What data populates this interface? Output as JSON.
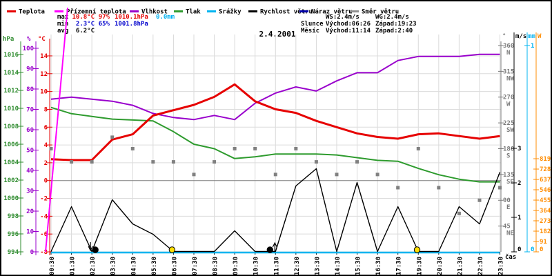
{
  "title": "2.4.2001",
  "legend": {
    "items": [
      {
        "label": "Teplota",
        "color": "#e60000"
      },
      {
        "label": "Přízemní teplota",
        "color": "#ff00ff"
      },
      {
        "label": "Vlhkost",
        "color": "#9900cc"
      },
      {
        "label": "Tlak",
        "color": "#2e9b2e"
      },
      {
        "label": "Srážky",
        "color": "#00b4f0"
      },
      {
        "label": "Rychlost větru",
        "color": "#000000"
      },
      {
        "label": "Náraz větru",
        "color": "#0000aa"
      },
      {
        "label": "Směr větru",
        "color": "#909090"
      }
    ]
  },
  "stats": {
    "max": {
      "label": "max",
      "temp": "10.8°C",
      "hum": "97%",
      "pres": "1010.1hPa",
      "precip": "0.0mm"
    },
    "min": {
      "label": "min",
      "temp": "2.3°C",
      "hum": "65%",
      "pres": "1001.8hPa"
    },
    "avg": {
      "label": "avg",
      "temp": "6.2°C"
    }
  },
  "wind_stats": {
    "ws": "WS:2.4m/s",
    "wg": "WG:2.4m/s",
    "sun_label": "Slunce",
    "sun_rise": "Východ:06:26",
    "sun_set": "Západ:19:23",
    "moon_label": "Měsíc",
    "moon_rise": "Východ:11:14",
    "moon_set": "Západ:2:40"
  },
  "axis_titles": {
    "pressure": "hPa",
    "humidity": "%",
    "temperature": "°C",
    "direction": "°",
    "wind": "m/s",
    "precip": "mm",
    "radiation": "W",
    "time": "čas"
  },
  "chart_data": {
    "type": "line",
    "title": "2.4.2001",
    "xlabel": "čas",
    "x_labels": [
      "00:30",
      "01:30",
      "02:30",
      "03:30",
      "04:30",
      "05:30",
      "06:30",
      "07:30",
      "08:30",
      "09:30",
      "10:30",
      "11:30",
      "12:30",
      "13:30",
      "14:30",
      "15:30",
      "16:30",
      "17:30",
      "19:30",
      "20:30",
      "21:30",
      "22:30",
      "23:30"
    ],
    "axes": {
      "pressure_hpa_ticks": [
        1016,
        1014,
        1012,
        1010,
        1008,
        1006,
        1004,
        1002,
        1000,
        998,
        996,
        994
      ],
      "humidity_pct_ticks": [
        100,
        90,
        80,
        70,
        60,
        50,
        40,
        30,
        20,
        10,
        0
      ],
      "temperature_c_ticks": [
        14,
        12,
        10,
        8,
        6,
        4,
        2,
        0,
        -2,
        -4,
        -6,
        -8
      ],
      "direction_deg_ticks": [
        {
          "v": 360,
          "d": "N"
        },
        {
          "v": 315,
          "d": "NW"
        },
        {
          "v": 270,
          "d": "W"
        },
        {
          "v": 225,
          "d": "SW"
        },
        {
          "v": 180,
          "d": "S"
        },
        {
          "v": 135,
          "d": "SE"
        },
        {
          "v": 90,
          "d": "E"
        },
        {
          "v": 45,
          "d": "NE"
        }
      ],
      "wind_ms_ticks": [
        3,
        2,
        1,
        0
      ],
      "precip_mm_ticks": [
        1,
        0
      ],
      "radiation_w_ticks": [
        819,
        728,
        637,
        546,
        455,
        364,
        273,
        182,
        91,
        0
      ]
    },
    "series": [
      {
        "name": "Teplota",
        "unit": "°C",
        "color": "#e60000",
        "values": [
          2.4,
          2.3,
          2.3,
          4.6,
          5.2,
          7.3,
          7.9,
          8.5,
          9.4,
          10.8,
          8.9,
          8.0,
          7.6,
          6.7,
          6.0,
          5.3,
          4.9,
          4.7,
          5.2,
          5.3,
          5.0,
          4.7,
          5.0
        ]
      },
      {
        "name": "Přízemní teplota",
        "unit": "°C",
        "color": "#ff00ff",
        "segment": {
          "i": [
            -0.27,
            0.81
          ],
          "v": [
            -8,
            19.4
          ]
        }
      },
      {
        "name": "Vlhkost",
        "unit": "%",
        "color": "#9900cc",
        "values": [
          75,
          76,
          75,
          74,
          72,
          68,
          66,
          65,
          67,
          65,
          73,
          78,
          81,
          79,
          84,
          88,
          88,
          94,
          96,
          96,
          96,
          97,
          97
        ]
      },
      {
        "name": "Tlak",
        "unit": "hPa",
        "color": "#2e9b2e",
        "values": [
          1010.1,
          1009.4,
          1009.1,
          1008.8,
          1008.7,
          1008.6,
          1007.4,
          1006.0,
          1005.5,
          1004.4,
          1004.6,
          1004.9,
          1004.9,
          1004.9,
          1004.8,
          1004.5,
          1004.2,
          1004.1,
          1003.3,
          1002.6,
          1002.1,
          1001.8,
          1001.8
        ]
      },
      {
        "name": "Srážky",
        "unit": "mm",
        "color": "#00b4f0",
        "values": [
          0,
          0,
          0,
          0,
          0,
          0,
          0,
          0,
          0,
          0,
          0,
          0,
          0,
          0,
          0,
          0,
          0,
          0,
          0,
          0,
          0,
          0,
          0
        ]
      },
      {
        "name": "Rychlost větru",
        "unit": "m/s",
        "color": "#000000",
        "values": [
          0,
          1.3,
          0,
          1.5,
          0.8,
          0.5,
          0,
          0,
          0,
          0.6,
          0,
          0,
          1.9,
          2.4,
          0,
          2.0,
          0,
          1.3,
          0,
          0,
          1.3,
          0.8,
          2.3
        ]
      },
      {
        "name": "Směr větru",
        "unit": "°",
        "color": "#808080",
        "style": "squares",
        "values": [
          180,
          157,
          157,
          200,
          180,
          157,
          157,
          135,
          157,
          180,
          180,
          135,
          180,
          157,
          135,
          157,
          135,
          112,
          180,
          112,
          67,
          90,
          112
        ]
      }
    ],
    "markers": {
      "moon_set": {
        "i": 2.17,
        "time": "2:40",
        "kind": "moon"
      },
      "sun_rise": {
        "i": 5.93,
        "time": "06:26",
        "kind": "sun"
      },
      "moon_rise": {
        "i": 10.73,
        "time": "11:14",
        "kind": "moon"
      },
      "sun_set": {
        "i": 17.94,
        "time": "19:23",
        "kind": "sun"
      }
    }
  }
}
